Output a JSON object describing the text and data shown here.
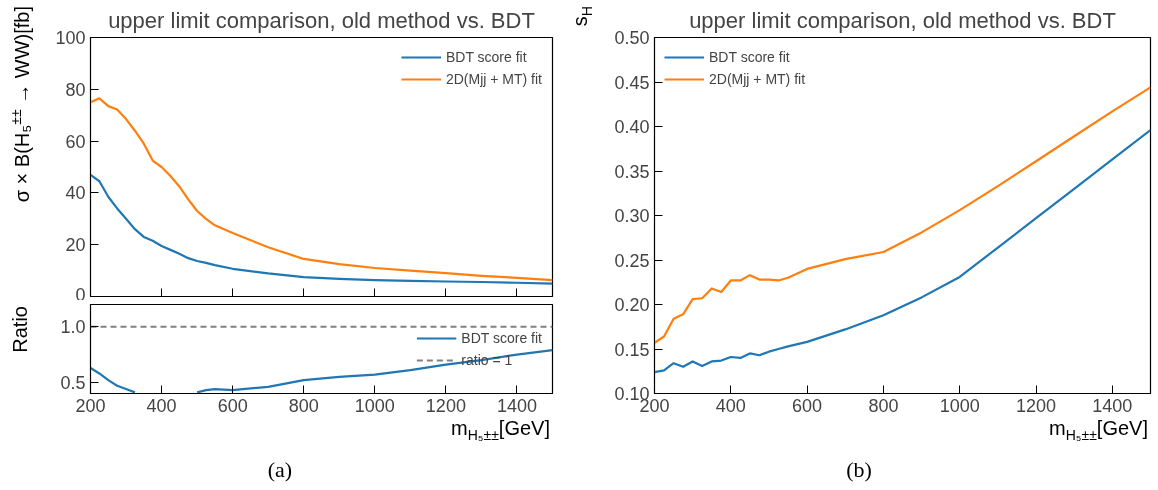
{
  "chart_data": [
    {
      "type": "line",
      "title": "upper limit comparison, old method vs. BDT",
      "ylabel": "σ × B(H₅$^{±±}$ → WW)[fb]",
      "x": [
        200,
        225,
        250,
        275,
        300,
        325,
        350,
        375,
        400,
        425,
        450,
        475,
        500,
        525,
        550,
        600,
        700,
        800,
        900,
        1000,
        1100,
        1200,
        1300,
        1400,
        1500
      ],
      "series": [
        {
          "name": "BDT score fit",
          "color": "#1f77b4",
          "values": [
            47,
            44.5,
            38.5,
            34,
            30,
            26,
            23,
            21.5,
            19.5,
            18,
            16.5,
            14.8,
            13.7,
            13,
            12.1,
            10.7,
            8.9,
            7.5,
            6.8,
            6.3,
            6.0,
            5.8,
            5.6,
            5.3,
            5.0
          ]
        },
        {
          "name": "2D(Mjj + MT) fit",
          "color": "#ff7f0e",
          "values": [
            75,
            76.5,
            73.5,
            72.2,
            68.5,
            64,
            59,
            52.5,
            50,
            46.5,
            42.5,
            37.5,
            33,
            30,
            27.5,
            24.5,
            19,
            14.5,
            12.5,
            11,
            10,
            9,
            8,
            7.2,
            6.3
          ]
        }
      ],
      "xlim": [
        200,
        1500
      ],
      "xticks": [
        200,
        400,
        600,
        800,
        1000,
        1200,
        1400
      ],
      "ylim": [
        0,
        100
      ],
      "yticks": [
        0,
        20,
        40,
        60,
        80,
        100
      ],
      "tick_labels": "y",
      "legend": "top right",
      "grid": false
    },
    {
      "type": "line",
      "ylabel": "Ratio",
      "xlabel": "m$_{H₅±±}$[GeV]",
      "annotations": [
        "(a)"
      ],
      "x": [
        200,
        225,
        250,
        275,
        300,
        325,
        350,
        375,
        400,
        425,
        450,
        475,
        500,
        525,
        550,
        600,
        700,
        800,
        900,
        1000,
        1100,
        1200,
        1300,
        1400,
        1500
      ],
      "series": [
        {
          "name": "BDT score fit",
          "color": "#1f77b4",
          "values": [
            0.63,
            0.58,
            0.52,
            0.47,
            0.44,
            0.41,
            null,
            null,
            null,
            null,
            null,
            null,
            0.41,
            0.43,
            0.44,
            0.43,
            0.46,
            0.52,
            0.55,
            0.57,
            0.61,
            0.66,
            0.7,
            0.75,
            0.79
          ]
        }
      ],
      "ref_lines": [
        {
          "axis": "y",
          "value": 1.0,
          "label": "ratio = 1",
          "color": "#808080",
          "line_style": "dashed"
        }
      ],
      "xlim": [
        200,
        1500
      ],
      "xticks": [
        200,
        400,
        600,
        800,
        1000,
        1200,
        1400
      ],
      "ylim": [
        0.4,
        1.2
      ],
      "yticks": [
        0.5,
        {
          "value": 1.0,
          "label": "1.0"
        }
      ],
      "legend": "right",
      "grid": false
    },
    {
      "type": "line",
      "title": "upper limit comparison, old method vs. BDT",
      "ylabel": "s$_{H}$",
      "xlabel": "m$_{H₅±±}$[GeV]",
      "annotations": [
        "(b)"
      ],
      "x": [
        200,
        225,
        250,
        275,
        300,
        325,
        350,
        375,
        400,
        425,
        450,
        475,
        500,
        525,
        550,
        600,
        700,
        800,
        900,
        1000,
        1100,
        1200,
        1300,
        1400,
        1500
      ],
      "series": [
        {
          "name": "BDT score fit",
          "color": "#1f77b4",
          "values": [
            0.124,
            0.126,
            0.134,
            0.13,
            0.136,
            0.131,
            0.136,
            0.137,
            0.141,
            0.14,
            0.145,
            0.143,
            0.147,
            0.15,
            0.153,
            0.158,
            0.172,
            0.188,
            0.208,
            0.231,
            0.264,
            0.297,
            0.33,
            0.363,
            0.396
          ]
        },
        {
          "name": "2D(Mjj + MT) fit",
          "color": "#ff7f0e",
          "values": [
            0.157,
            0.164,
            0.184,
            0.189,
            0.206,
            0.207,
            0.218,
            0.214,
            0.227,
            0.227,
            0.233,
            0.228,
            0.228,
            0.227,
            0.23,
            0.24,
            0.251,
            0.259,
            0.281,
            0.306,
            0.333,
            0.361,
            0.389,
            0.417,
            0.444
          ]
        }
      ],
      "xlim": [
        200,
        1500
      ],
      "xticks": [
        200,
        400,
        600,
        800,
        1000,
        1200,
        1400
      ],
      "ylim": [
        0.1,
        0.5
      ],
      "yticks": [
        {
          "value": 0.1,
          "label": "0.10"
        },
        {
          "value": 0.15,
          "label": "0.15"
        },
        {
          "value": 0.2,
          "label": "0.20"
        },
        {
          "value": 0.25,
          "label": "0.25"
        },
        {
          "value": 0.3,
          "label": "0.30"
        },
        {
          "value": 0.35,
          "label": "0.35"
        },
        {
          "value": 0.4,
          "label": "0.40"
        },
        {
          "value": 0.45,
          "label": "0.45"
        },
        {
          "value": 0.5,
          "label": "0.50"
        }
      ],
      "legend": "top left",
      "grid": false
    }
  ]
}
